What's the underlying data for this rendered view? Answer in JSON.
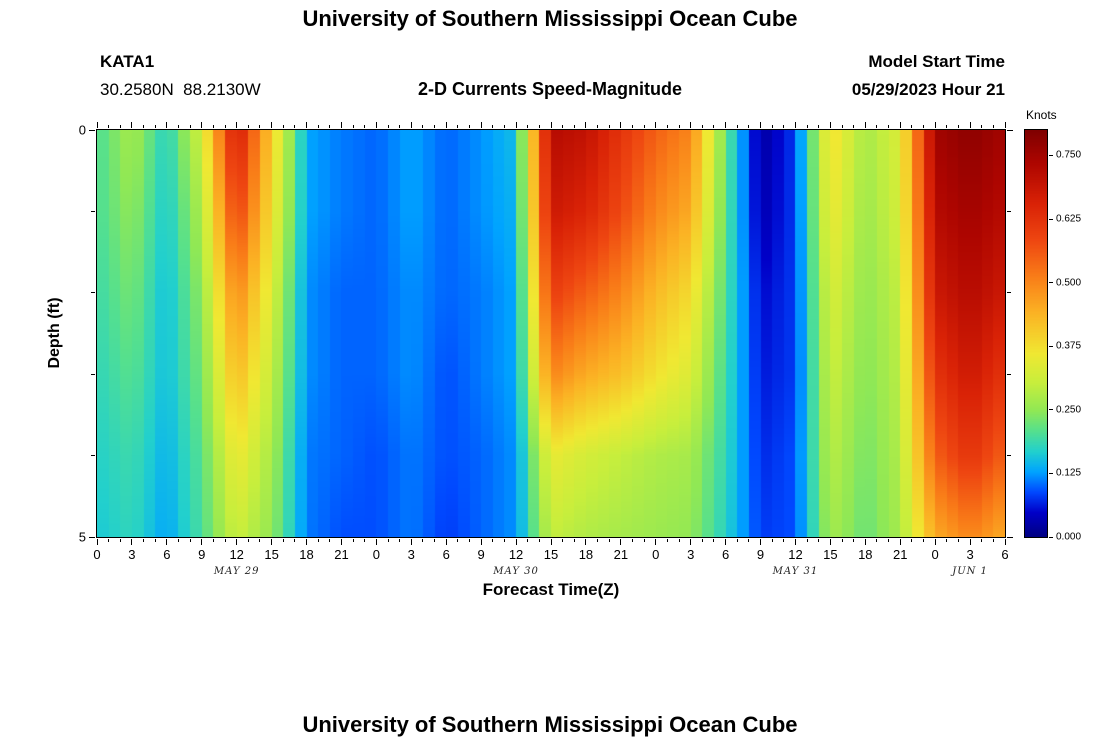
{
  "page": {
    "title": "University of Southern Mississippi Ocean Cube",
    "bottom_title": "University of Southern Mississippi Ocean Cube"
  },
  "header": {
    "station_id": "KATA1",
    "station_coords": "30.2580N  88.2130W",
    "chart_title": "2-D Currents Speed-Magnitude",
    "model_start_label": "Model Start Time",
    "model_start_value": "05/29/2023 Hour 21"
  },
  "chart_data": {
    "type": "heatmap",
    "title": "2-D Currents Speed-Magnitude",
    "xlabel": "Forecast Time(Z)",
    "ylabel": "Depth (ft)",
    "colorbar_label": "Knots",
    "units": "Knots",
    "xlim": [
      0,
      78
    ],
    "ylim": [
      0,
      5
    ],
    "vmin": 0.0,
    "vmax": 0.8,
    "x_hours": [
      0,
      3,
      6,
      9,
      12,
      15,
      18,
      21,
      24,
      27,
      30,
      33,
      36,
      39,
      42,
      45,
      48,
      51,
      54,
      57,
      60,
      63,
      66,
      69,
      72,
      75,
      78
    ],
    "x_tick_hours": [
      0,
      3,
      6,
      9,
      12,
      15,
      18,
      21,
      24,
      27,
      30,
      33,
      36,
      39,
      42,
      45,
      48,
      51,
      54,
      57,
      60,
      63,
      66,
      69,
      72,
      75,
      78
    ],
    "x_tick_labels": [
      "0",
      "3",
      "6",
      "9",
      "12",
      "15",
      "18",
      "21",
      "0",
      "3",
      "6",
      "9",
      "12",
      "15",
      "18",
      "21",
      "0",
      "3",
      "6",
      "9",
      "12",
      "15",
      "18",
      "21",
      "0",
      "3",
      "6"
    ],
    "day_labels": [
      {
        "label": "MAY 29",
        "hour": 12
      },
      {
        "label": "MAY 30",
        "hour": 36
      },
      {
        "label": "MAY 31",
        "hour": 60
      },
      {
        "label": "JUN 1",
        "hour": 75
      }
    ],
    "depths": [
      0,
      1,
      2,
      3,
      4,
      5
    ],
    "y_tick_labels": [
      "0",
      "",
      "",
      "",
      "",
      "5"
    ],
    "colorbar_ticks": [
      0.0,
      0.125,
      0.25,
      0.375,
      0.5,
      0.625,
      0.75
    ],
    "colorbar_tick_labels": [
      "0.000",
      "0.125",
      "0.250",
      "0.375",
      "0.500",
      "0.625",
      "0.750"
    ],
    "values": [
      [
        0.2,
        0.27,
        0.17,
        0.32,
        0.68,
        0.4,
        0.13,
        0.11,
        0.1,
        0.13,
        0.1,
        0.12,
        0.15,
        0.72,
        0.7,
        0.62,
        0.55,
        0.5,
        0.22,
        0.02,
        0.08,
        0.38,
        0.27,
        0.33,
        0.75,
        0.78,
        0.75
      ],
      [
        0.2,
        0.25,
        0.16,
        0.28,
        0.6,
        0.37,
        0.13,
        0.11,
        0.1,
        0.13,
        0.1,
        0.12,
        0.14,
        0.68,
        0.65,
        0.58,
        0.5,
        0.45,
        0.21,
        0.03,
        0.08,
        0.36,
        0.26,
        0.32,
        0.72,
        0.75,
        0.72
      ],
      [
        0.19,
        0.23,
        0.15,
        0.25,
        0.5,
        0.33,
        0.12,
        0.1,
        0.1,
        0.12,
        0.1,
        0.11,
        0.13,
        0.6,
        0.55,
        0.5,
        0.43,
        0.38,
        0.2,
        0.05,
        0.08,
        0.33,
        0.25,
        0.3,
        0.68,
        0.72,
        0.68
      ],
      [
        0.18,
        0.21,
        0.15,
        0.23,
        0.43,
        0.3,
        0.12,
        0.1,
        0.1,
        0.12,
        0.09,
        0.11,
        0.13,
        0.5,
        0.45,
        0.42,
        0.37,
        0.33,
        0.19,
        0.06,
        0.08,
        0.31,
        0.24,
        0.29,
        0.62,
        0.68,
        0.62
      ],
      [
        0.17,
        0.19,
        0.14,
        0.21,
        0.36,
        0.27,
        0.11,
        0.1,
        0.09,
        0.11,
        0.09,
        0.1,
        0.12,
        0.35,
        0.32,
        0.3,
        0.28,
        0.27,
        0.18,
        0.07,
        0.09,
        0.29,
        0.23,
        0.28,
        0.55,
        0.62,
        0.55
      ],
      [
        0.16,
        0.18,
        0.13,
        0.2,
        0.31,
        0.25,
        0.11,
        0.09,
        0.09,
        0.11,
        0.08,
        0.1,
        0.12,
        0.3,
        0.28,
        0.27,
        0.26,
        0.25,
        0.17,
        0.08,
        0.09,
        0.27,
        0.22,
        0.27,
        0.45,
        0.5,
        0.45
      ]
    ],
    "colormap_stops": [
      {
        "pos": 0.0,
        "color": "#000082"
      },
      {
        "pos": 0.06,
        "color": "#0000c8"
      },
      {
        "pos": 0.11,
        "color": "#0048ff"
      },
      {
        "pos": 0.16,
        "color": "#00a4ff"
      },
      {
        "pos": 0.21,
        "color": "#22d0cd"
      },
      {
        "pos": 0.26,
        "color": "#55e08e"
      },
      {
        "pos": 0.31,
        "color": "#90e855"
      },
      {
        "pos": 0.38,
        "color": "#c8ee3c"
      },
      {
        "pos": 0.45,
        "color": "#f0e832"
      },
      {
        "pos": 0.55,
        "color": "#fbb324"
      },
      {
        "pos": 0.64,
        "color": "#f97d18"
      },
      {
        "pos": 0.73,
        "color": "#ee4611"
      },
      {
        "pos": 0.82,
        "color": "#d92206"
      },
      {
        "pos": 0.92,
        "color": "#ad0500"
      },
      {
        "pos": 1.0,
        "color": "#7f0000"
      }
    ]
  }
}
